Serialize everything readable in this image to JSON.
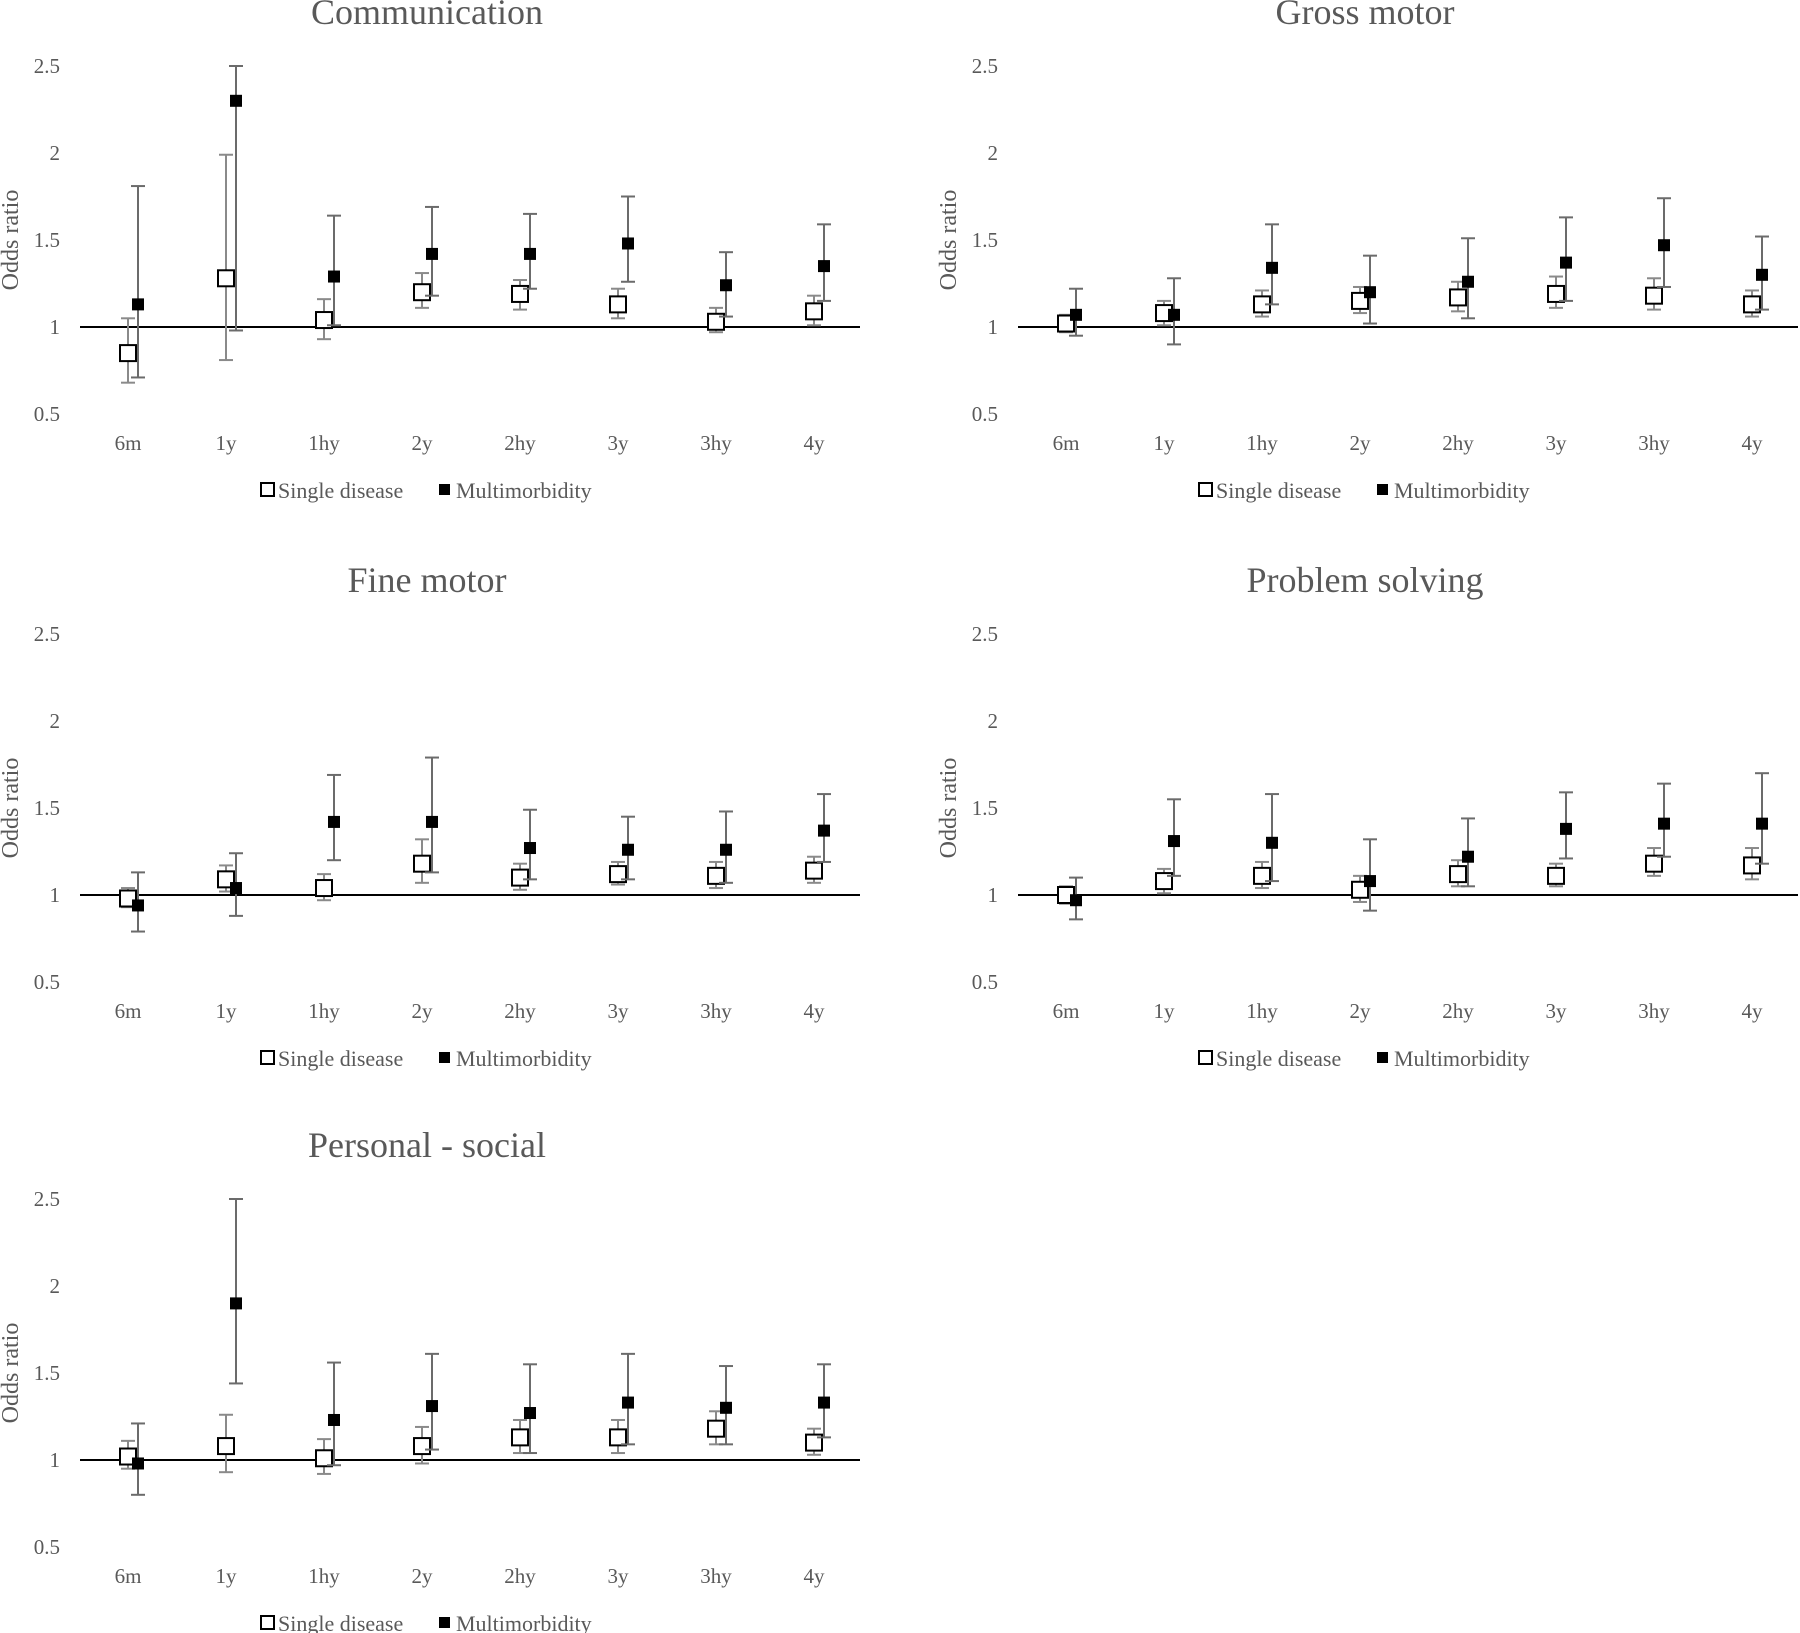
{
  "chart_data": [
    {
      "type": "scatter",
      "title": "Communication",
      "ylabel": "Odds ratio",
      "categories": [
        "6m",
        "1y",
        "1hy",
        "2y",
        "2hy",
        "3y",
        "3hy",
        "4y"
      ],
      "yticks": [
        "2.5",
        "2",
        "1.5",
        "1",
        "0.5"
      ],
      "ylim": [
        0.5,
        2.5
      ],
      "reference_line": 1,
      "legend_position": "bottom",
      "series": [
        {
          "name": "Single disease",
          "values": [
            0.85,
            1.28,
            1.04,
            1.2,
            1.19,
            1.13,
            1.03,
            1.09
          ],
          "lower": [
            0.68,
            0.81,
            0.93,
            1.11,
            1.1,
            1.05,
            0.97,
            1.01
          ],
          "upper": [
            1.05,
            1.99,
            1.16,
            1.31,
            1.27,
            1.22,
            1.11,
            1.18
          ]
        },
        {
          "name": "Multimorbidity",
          "values": [
            1.13,
            2.3,
            1.29,
            1.42,
            1.42,
            1.48,
            1.24,
            1.35
          ],
          "lower": [
            0.71,
            0.98,
            1.01,
            1.18,
            1.22,
            1.26,
            1.06,
            1.15
          ],
          "upper": [
            1.81,
            2.5,
            1.64,
            1.69,
            1.65,
            1.75,
            1.43,
            1.59
          ]
        }
      ]
    },
    {
      "type": "scatter",
      "title": "Gross motor",
      "ylabel": "Odds ratio",
      "categories": [
        "6m",
        "1y",
        "1hy",
        "2y",
        "2hy",
        "3y",
        "3hy",
        "4y"
      ],
      "yticks": [
        "2.5",
        "2",
        "1.5",
        "1",
        "0.5"
      ],
      "ylim": [
        0.5,
        2.5
      ],
      "reference_line": 1,
      "legend_position": "bottom",
      "series": [
        {
          "name": "Single disease",
          "values": [
            1.02,
            1.08,
            1.13,
            1.15,
            1.17,
            1.19,
            1.18,
            1.13
          ],
          "lower": [
            0.97,
            1.01,
            1.06,
            1.08,
            1.09,
            1.11,
            1.1,
            1.06
          ],
          "upper": [
            1.07,
            1.15,
            1.21,
            1.23,
            1.26,
            1.29,
            1.28,
            1.21
          ]
        },
        {
          "name": "Multimorbidity",
          "values": [
            1.07,
            1.07,
            1.34,
            1.2,
            1.26,
            1.37,
            1.47,
            1.3
          ],
          "lower": [
            0.95,
            0.9,
            1.13,
            1.02,
            1.05,
            1.15,
            1.23,
            1.1
          ],
          "upper": [
            1.22,
            1.28,
            1.59,
            1.41,
            1.51,
            1.63,
            1.74,
            1.52
          ]
        }
      ]
    },
    {
      "type": "scatter",
      "title": "Fine motor",
      "ylabel": "Odds ratio",
      "categories": [
        "6m",
        "1y",
        "1hy",
        "2y",
        "2hy",
        "3y",
        "3hy",
        "4y"
      ],
      "yticks": [
        "2.5",
        "2",
        "1.5",
        "1",
        "0.5"
      ],
      "ylim": [
        0.5,
        2.5
      ],
      "reference_line": 1,
      "legend_position": "bottom",
      "series": [
        {
          "name": "Single disease",
          "values": [
            0.98,
            1.09,
            1.04,
            1.18,
            1.1,
            1.12,
            1.11,
            1.14
          ],
          "lower": [
            0.93,
            1.02,
            0.97,
            1.07,
            1.03,
            1.06,
            1.04,
            1.07
          ],
          "upper": [
            1.04,
            1.17,
            1.12,
            1.32,
            1.18,
            1.19,
            1.19,
            1.22
          ]
        },
        {
          "name": "Multimorbidity",
          "values": [
            0.94,
            1.04,
            1.42,
            1.42,
            1.27,
            1.26,
            1.26,
            1.37
          ],
          "lower": [
            0.79,
            0.88,
            1.2,
            1.13,
            1.09,
            1.09,
            1.07,
            1.19
          ],
          "upper": [
            1.13,
            1.24,
            1.69,
            1.79,
            1.49,
            1.45,
            1.48,
            1.58
          ]
        }
      ]
    },
    {
      "type": "scatter",
      "title": "Problem solving",
      "ylabel": "Odds ratio",
      "categories": [
        "6m",
        "1y",
        "1hy",
        "2y",
        "2hy",
        "3y",
        "3hy",
        "4y"
      ],
      "yticks": [
        "2.5",
        "2",
        "1.5",
        "1",
        "0.5"
      ],
      "ylim": [
        0.5,
        2.5
      ],
      "reference_line": 1,
      "legend_position": "bottom",
      "series": [
        {
          "name": "Single disease",
          "values": [
            1.0,
            1.08,
            1.11,
            1.03,
            1.12,
            1.11,
            1.18,
            1.17
          ],
          "lower": [
            0.95,
            1.01,
            1.04,
            0.96,
            1.05,
            1.05,
            1.11,
            1.09
          ],
          "upper": [
            1.05,
            1.15,
            1.19,
            1.11,
            1.2,
            1.18,
            1.27,
            1.27
          ]
        },
        {
          "name": "Multimorbidity",
          "values": [
            0.97,
            1.31,
            1.3,
            1.08,
            1.22,
            1.38,
            1.41,
            1.41
          ],
          "lower": [
            0.86,
            1.11,
            1.08,
            0.91,
            1.05,
            1.21,
            1.22,
            1.18
          ],
          "upper": [
            1.1,
            1.55,
            1.58,
            1.32,
            1.44,
            1.59,
            1.64,
            1.7
          ]
        }
      ]
    },
    {
      "type": "scatter",
      "title": "Personal - social",
      "ylabel": "Odds ratio",
      "categories": [
        "6m",
        "1y",
        "1hy",
        "2y",
        "2hy",
        "3y",
        "3hy",
        "4y"
      ],
      "yticks": [
        "2.5",
        "2",
        "1.5",
        "1",
        "0.5"
      ],
      "ylim": [
        0.5,
        2.5
      ],
      "reference_line": 1,
      "legend_position": "bottom",
      "series": [
        {
          "name": "Single disease",
          "values": [
            1.02,
            1.08,
            1.01,
            1.08,
            1.13,
            1.13,
            1.18,
            1.1
          ],
          "lower": [
            0.95,
            0.93,
            0.92,
            0.98,
            1.04,
            1.04,
            1.09,
            1.03
          ],
          "upper": [
            1.11,
            1.26,
            1.12,
            1.19,
            1.23,
            1.23,
            1.28,
            1.18
          ]
        },
        {
          "name": "Multimorbidity",
          "values": [
            0.98,
            1.9,
            1.23,
            1.31,
            1.27,
            1.33,
            1.3,
            1.33
          ],
          "lower": [
            0.8,
            1.44,
            0.97,
            1.06,
            1.04,
            1.09,
            1.09,
            1.13
          ],
          "upper": [
            1.21,
            2.5,
            1.56,
            1.61,
            1.55,
            1.61,
            1.54,
            1.55
          ]
        }
      ]
    }
  ]
}
